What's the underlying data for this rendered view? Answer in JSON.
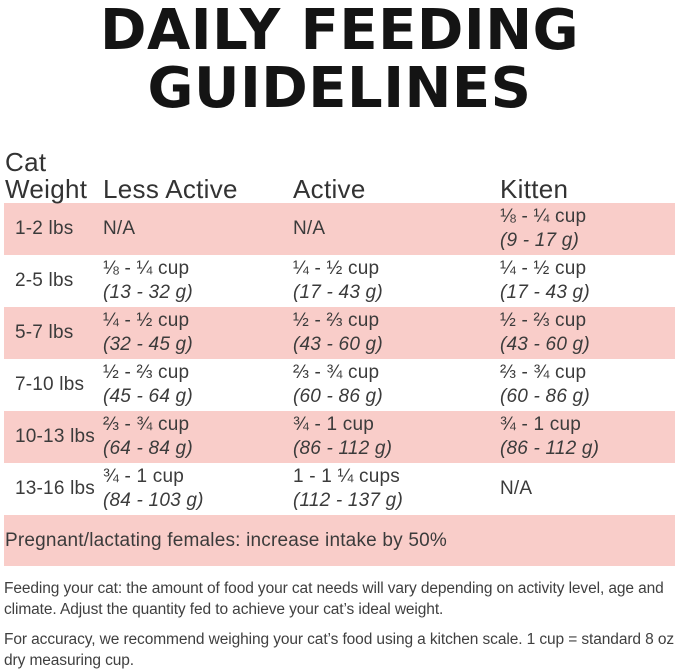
{
  "title": {
    "line1": "DAILY FEEDING",
    "line2": "GUIDELINES"
  },
  "table": {
    "header": {
      "col1_line1": "Cat",
      "col1_line2": "Weight",
      "col2": "Less Active",
      "col3": "Active",
      "col4": "Kitten"
    },
    "rows": [
      {
        "weight": "1-2 lbs",
        "shaded": true,
        "cells": [
          {
            "amount": "N/A",
            "grams": ""
          },
          {
            "amount": "N/A",
            "grams": ""
          },
          {
            "amount": "⅛ - ¼ cup",
            "grams": "(9 - 17 g)"
          }
        ]
      },
      {
        "weight": "2-5 lbs",
        "shaded": false,
        "cells": [
          {
            "amount": "⅛ - ¼ cup",
            "grams": "(13 - 32 g)"
          },
          {
            "amount": "¼ - ½ cup",
            "grams": "(17 - 43 g)"
          },
          {
            "amount": "¼ - ½ cup",
            "grams": "(17 - 43 g)"
          }
        ]
      },
      {
        "weight": "5-7 lbs",
        "shaded": true,
        "cells": [
          {
            "amount": "¼ - ½ cup",
            "grams": "(32 - 45 g)"
          },
          {
            "amount": "½ - ⅔ cup",
            "grams": "(43 - 60 g)"
          },
          {
            "amount": "½ - ⅔ cup",
            "grams": "(43 - 60 g)"
          }
        ]
      },
      {
        "weight": "7-10 lbs",
        "shaded": false,
        "cells": [
          {
            "amount": "½ - ⅔ cup",
            "grams": "(45 - 64 g)"
          },
          {
            "amount": "⅔ - ¾ cup",
            "grams": "(60 - 86 g)"
          },
          {
            "amount": "⅔ - ¾ cup",
            "grams": "(60 - 86 g)"
          }
        ]
      },
      {
        "weight": "10-13 lbs",
        "shaded": true,
        "cells": [
          {
            "amount": "⅔ - ¾ cup",
            "grams": "(64 - 84 g)"
          },
          {
            "amount": "¾ - 1 cup",
            "grams": "(86 - 112 g)"
          },
          {
            "amount": "¾ - 1 cup",
            "grams": "(86 - 112 g)"
          }
        ]
      },
      {
        "weight": "13-16 lbs",
        "shaded": false,
        "cells": [
          {
            "amount": "¾ - 1 cup",
            "grams": "(84 - 103 g)"
          },
          {
            "amount": "1 - 1 ¼ cups",
            "grams": "(112 - 137 g)"
          },
          {
            "amount": "N/A",
            "grams": ""
          }
        ]
      }
    ]
  },
  "note_bar": {
    "text": "Pregnant/lactating females: increase intake by 50%"
  },
  "footnotes": {
    "para1": "Feeding your cat: the amount of food your cat needs will vary depending on activity level, age and climate. Adjust the quantity fed to achieve your cat’s ideal weight.",
    "para2": "For accuracy, we recommend weighing your cat’s food using a kitchen scale. 1 cup = standard 8 oz dry measuring cup."
  },
  "colors": {
    "row_pink": "#f9cdc9",
    "text": "#3b3b3b",
    "title": "#141414"
  }
}
